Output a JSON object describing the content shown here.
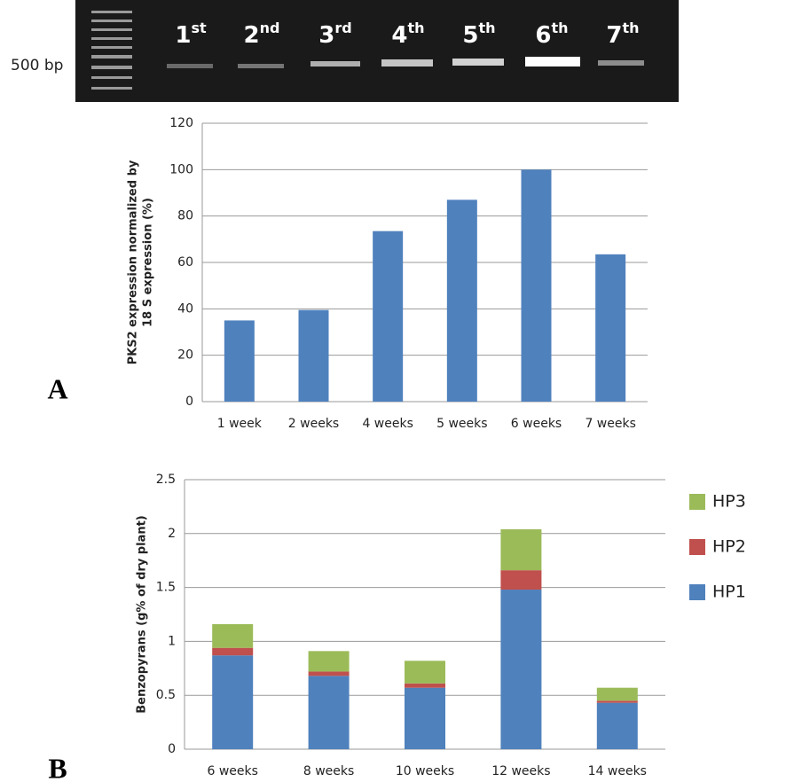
{
  "gel": {
    "marker": "500 bp",
    "lanes": [
      {
        "number": "1",
        "suffix": "st"
      },
      {
        "number": "2",
        "suffix": "nd"
      },
      {
        "number": "3",
        "suffix": "rd"
      },
      {
        "number": "4",
        "suffix": "th"
      },
      {
        "number": "5",
        "suffix": "th"
      },
      {
        "number": "6",
        "suffix": "th"
      },
      {
        "number": "7",
        "suffix": "th"
      }
    ]
  },
  "chart_data": [
    {
      "type": "bar",
      "panel": "A",
      "ylabel": [
        "PKS2 expression normalized by",
        "18 S expression (%)"
      ],
      "categories": [
        "1 week",
        "2 weeks",
        "4 weeks",
        "5 weeks",
        "6 weeks",
        "7 weeks"
      ],
      "values": [
        35,
        39.5,
        73.5,
        87,
        100,
        63.5
      ],
      "color": "#4f81bd",
      "ylim": [
        0,
        120
      ],
      "yticks": [
        0,
        20,
        40,
        60,
        80,
        100,
        120
      ],
      "grid": true
    },
    {
      "type": "stacked_bar",
      "panel": "B",
      "ylabel": [
        "Benzopyrans (g% of dry plant)"
      ],
      "categories": [
        "6 weeks",
        "8 weeks",
        "10 weeks",
        "12 weeks",
        "14 weeks"
      ],
      "series": [
        {
          "name": "HP1",
          "color": "#4f81bd",
          "values": [
            0.87,
            0.68,
            0.57,
            1.48,
            0.43
          ]
        },
        {
          "name": "HP2",
          "color": "#c0504d",
          "values": [
            0.07,
            0.04,
            0.04,
            0.18,
            0.02
          ]
        },
        {
          "name": "HP3",
          "color": "#9bbb59",
          "values": [
            0.22,
            0.19,
            0.21,
            0.38,
            0.12
          ]
        }
      ],
      "ylim": [
        0,
        2.5
      ],
      "yticks": [
        0,
        0.5,
        1,
        1.5,
        2,
        2.5
      ],
      "grid": true,
      "legend": "right"
    }
  ]
}
